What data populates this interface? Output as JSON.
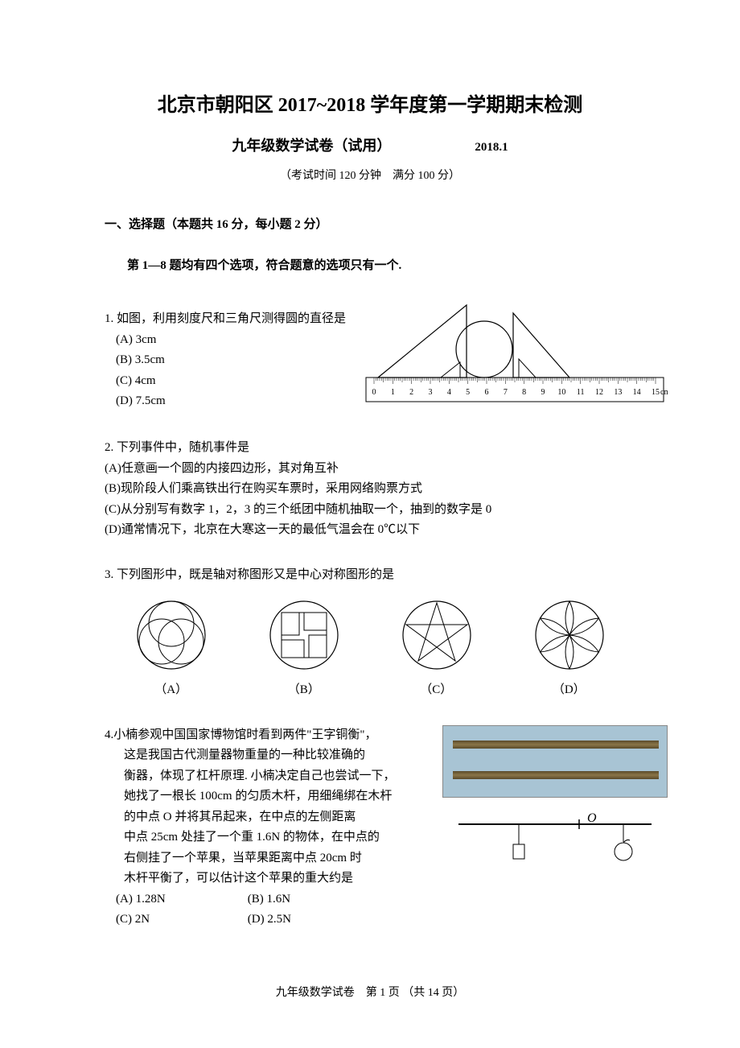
{
  "header": {
    "title": "北京市朝阳区 2017~2018 学年度第一学期期末检测",
    "subtitle": "九年级数学试卷（试用）",
    "date": "2018.1",
    "exam_info": "（考试时间 120 分钟　满分 100 分）"
  },
  "section": {
    "head": "一、选择题（本题共 16 分，每小题 2 分）",
    "instruction": "第 1—8 题均有四个选项，符合题意的选项只有一个."
  },
  "q1": {
    "stem": "1. 如图，利用刻度尺和三角尺测得圆的直径是",
    "opts": {
      "a": "(A) 3cm",
      "b": "(B) 3.5cm",
      "c": "(C) 4cm",
      "d": "(D) 7.5cm"
    },
    "ruler": {
      "ticks": [
        "0",
        "1",
        "2",
        "3",
        "4",
        "5",
        "6",
        "7",
        "8",
        "9",
        "10",
        "11",
        "12",
        "13",
        "14",
        "15"
      ],
      "unit": "cm",
      "circle_left_x": 3.5,
      "circle_right_x": 7.5,
      "colors": {
        "stroke": "#000000",
        "bg": "#ffffff"
      }
    }
  },
  "q2": {
    "stem": "2. 下列事件中，随机事件是",
    "a": "(A)任意画一个圆的内接四边形，其对角互补",
    "b": "(B)现阶段人们乘高铁出行在购买车票时，采用网络购票方式",
    "c": "(C)从分别写有数字 1，2，3 的三个纸团中随机抽取一个，抽到的数字是 0",
    "d": "(D)通常情况下，北京在大寒这一天的最低气温会在 0℃以下"
  },
  "q3": {
    "stem": "3. 下列图形中，既是轴对称图形又是中心对称图形的是",
    "labels": {
      "a": "（A）",
      "b": "（B）",
      "c": "（C）",
      "d": "（D）"
    },
    "style": {
      "stroke": "#000000",
      "r": 42
    }
  },
  "q4": {
    "lines": [
      "4.小楠参观中国国家博物馆时看到两件\"王字铜衡\"，",
      "这是我国古代测量器物重量的一种比较准确的",
      "衡器，体现了杠杆原理. 小楠决定自己也尝试一下，",
      "她找了一根长 100cm 的匀质木杆，用细绳绑在木杆",
      "的中点 O 并将其吊起来，在中点的左侧距离",
      "中点 25cm 处挂了一个重 1.6N 的物体，在中点的",
      "右侧挂了一个苹果，当苹果距离中点 20cm 时",
      "木杆平衡了，可以估计这个苹果的重大约是"
    ],
    "opts": {
      "a": "(A) 1.28N",
      "b": "(B) 1.6N",
      "c": "(C) 2N",
      "d": "(D) 2.5N"
    },
    "diagram": {
      "o_label": "O",
      "rod_length": 100,
      "left_dist": 25,
      "right_dist": 20,
      "left_weight_N": 1.6,
      "stroke": "#000000",
      "o_font_style": "italic"
    },
    "photo_bg": "#a8c4d4"
  },
  "footer": {
    "text_prefix": "九年级数学试卷　第 ",
    "page_num": "1",
    "text_mid": " 页 （共 ",
    "total": "14",
    "text_suffix": " 页）"
  }
}
